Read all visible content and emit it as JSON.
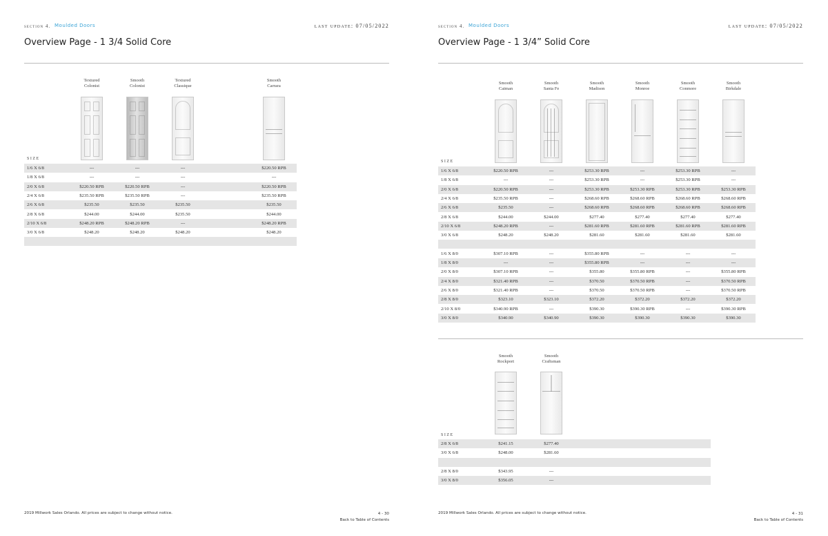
{
  "pages": [
    {
      "section": "section 4.",
      "section_name": "Moulded Doors",
      "last_update": "last update: 07/05/2022",
      "title": "Overview Page - 1 3/4 Solid Core",
      "tables": [
        {
          "size_label": "SIZE",
          "columns": [
            {
              "name": [
                "Textured",
                "Colonist"
              ]
            },
            {
              "name": [
                "Smooth",
                "Colonist"
              ]
            },
            {
              "name": [
                "Textured",
                "Classique"
              ]
            },
            {
              "name": [
                "Smooth",
                "Carrara"
              ]
            }
          ],
          "groups": [
            [
              {
                "size": "1/6 X 6/8",
                "cells": [
                  "---",
                  "---",
                  "---",
                  "$220.50 RPB"
                ]
              },
              {
                "size": "1/8 X 6/8",
                "cells": [
                  "---",
                  "---",
                  "---",
                  "---"
                ]
              },
              {
                "size": "2/0 X 6/8",
                "cells": [
                  "$220.50 RPB",
                  "$220.50 RPB",
                  "---",
                  "$220.50 RPB"
                ]
              },
              {
                "size": "2/4 X 6/8",
                "cells": [
                  "$235.50 RPB",
                  "$235.50 RPB",
                  "---",
                  "$235.50 RPB"
                ]
              },
              {
                "size": "2/6 X 6/8",
                "cells": [
                  "$235.50",
                  "$235.50",
                  "$235.50",
                  "$235.50"
                ]
              },
              {
                "size": "2/8 X 6/8",
                "cells": [
                  "$244.00",
                  "$244.00",
                  "$235.50",
                  "$244.00"
                ]
              },
              {
                "size": "2/10 X 6/8",
                "cells": [
                  "$248.20 RPB",
                  "$248.20 RPB",
                  "---",
                  "$248.20 RPB"
                ]
              },
              {
                "size": "3/0 X 6/8",
                "cells": [
                  "$248.20",
                  "$248.20",
                  "$248.20",
                  "$248.20"
                ]
              }
            ]
          ]
        }
      ],
      "footer": {
        "notice": "2019 Millwork Sales Orlando. All prices are subject to change without notice.",
        "page_number": "4 - 30",
        "link": "Back to Table of Contents"
      }
    },
    {
      "section": "section 4.",
      "section_name": "Moulded Doors",
      "last_update": "last update: 07/05/2022",
      "title": "Overview Page - 1 3/4” Solid Core",
      "tables": [
        {
          "size_label": "SIZE",
          "columns": [
            {
              "name": [
                "Smooth",
                "Caiman"
              ]
            },
            {
              "name": [
                "Smooth",
                "Santa Fe"
              ]
            },
            {
              "name": [
                "Smooth",
                "Madison"
              ]
            },
            {
              "name": [
                "Smooth",
                "Monroe"
              ]
            },
            {
              "name": [
                "Smooth",
                "Conmore"
              ]
            },
            {
              "name": [
                "Smooth",
                "Birkdale"
              ]
            }
          ],
          "groups": [
            [
              {
                "size": "1/6 X 6/8",
                "cells": [
                  "$220.50 RPB",
                  "---",
                  "$253.30 RPB",
                  "---",
                  "$253.30 RPB",
                  "---"
                ]
              },
              {
                "size": "1/8 X 6/8",
                "cells": [
                  "---",
                  "---",
                  "$253.30 RPB",
                  "---",
                  "$253.30 RPB",
                  "---"
                ]
              },
              {
                "size": "2/0 X 6/8",
                "cells": [
                  "$220.50 RPB",
                  "---",
                  "$253.30 RPB",
                  "$253.30 RPB",
                  "$253.30 RPB",
                  "$253.30 RPB"
                ]
              },
              {
                "size": "2/4 X 6/8",
                "cells": [
                  "$235.50 RPB",
                  "---",
                  "$268.60 RPB",
                  "$268.60 RPB",
                  "$268.60 RPB",
                  "$268.60 RPB"
                ]
              },
              {
                "size": "2/6 X 6/8",
                "cells": [
                  "$235.50",
                  "---",
                  "$268.60 RPB",
                  "$268.60 RPB",
                  "$268.60 RPB",
                  "$268.60 RPB"
                ]
              },
              {
                "size": "2/8 X 6/8",
                "cells": [
                  "$244.00",
                  "$244.00",
                  "$277.40",
                  "$277.40",
                  "$277.40",
                  "$277.40"
                ]
              },
              {
                "size": "2/10 X 6/8",
                "cells": [
                  "$248.20 RPB",
                  "---",
                  "$281.60 RPB",
                  "$281.60 RPB",
                  "$281.60 RPB",
                  "$281.60 RPB"
                ]
              },
              {
                "size": "3/0 X 6/8",
                "cells": [
                  "$248.20",
                  "$248.20",
                  "$281.60",
                  "$281.60",
                  "$281.60",
                  "$281.60"
                ]
              }
            ],
            [
              {
                "size": "1/6 X 8/0",
                "cells": [
                  "$307.10 RPB",
                  "---",
                  "$355.80 RPB",
                  "---",
                  "---",
                  "---"
                ]
              },
              {
                "size": "1/8 X 8/0",
                "cells": [
                  "---",
                  "---",
                  "$355.80 RPB",
                  "---",
                  "---",
                  "---"
                ]
              },
              {
                "size": "2/0 X 8/0",
                "cells": [
                  "$307.10 RPB",
                  "---",
                  "$355.80",
                  "$355.80 RPB",
                  "---",
                  "$355.80 RPB"
                ]
              },
              {
                "size": "2/4 X 8/0",
                "cells": [
                  "$321.40 RPB",
                  "---",
                  "$370.50",
                  "$370.50 RPB",
                  "---",
                  "$370.50 RPB"
                ]
              },
              {
                "size": "2/6 X 8/0",
                "cells": [
                  "$321.40 RPB",
                  "---",
                  "$370.50",
                  "$370.50 RPB",
                  "---",
                  "$370.50 RPB"
                ]
              },
              {
                "size": "2/8 X 8/0",
                "cells": [
                  "$323.10",
                  "$323.10",
                  "$372.20",
                  "$372.20",
                  "$372.20",
                  "$372.20"
                ]
              },
              {
                "size": "2/10 X 8/0",
                "cells": [
                  "$340.90 RPB",
                  "---",
                  "$390.30",
                  "$390.30 RPB",
                  "---",
                  "$390.30 RPB"
                ]
              },
              {
                "size": "3/0 X 8/0",
                "cells": [
                  "$340.90",
                  "$340.90",
                  "$390.30",
                  "$390.30",
                  "$390.30",
                  "$390.30"
                ]
              }
            ]
          ]
        },
        {
          "size_label": "SIZE",
          "columns": [
            {
              "name": [
                "Smooth",
                "Rockport"
              ]
            },
            {
              "name": [
                "Smooth",
                "Craftsman"
              ]
            }
          ],
          "groups": [
            [
              {
                "size": "2/8 X 6/8",
                "cells": [
                  "$241.15",
                  "$277.40"
                ]
              },
              {
                "size": "3/0 X 6/8",
                "cells": [
                  "$248.00",
                  "$281.60"
                ]
              }
            ],
            [
              {
                "size": "2/8 X 8/0",
                "cells": [
                  "$343.95",
                  "---"
                ]
              },
              {
                "size": "3/0 X 8/0",
                "cells": [
                  "$356.05",
                  "---"
                ]
              }
            ]
          ]
        }
      ],
      "footer": {
        "notice": "2019 Millwork Sales Orlando. All prices are subject to change without notice.",
        "page_number": "4 - 31",
        "link": "Back to Table of Contents"
      }
    }
  ]
}
